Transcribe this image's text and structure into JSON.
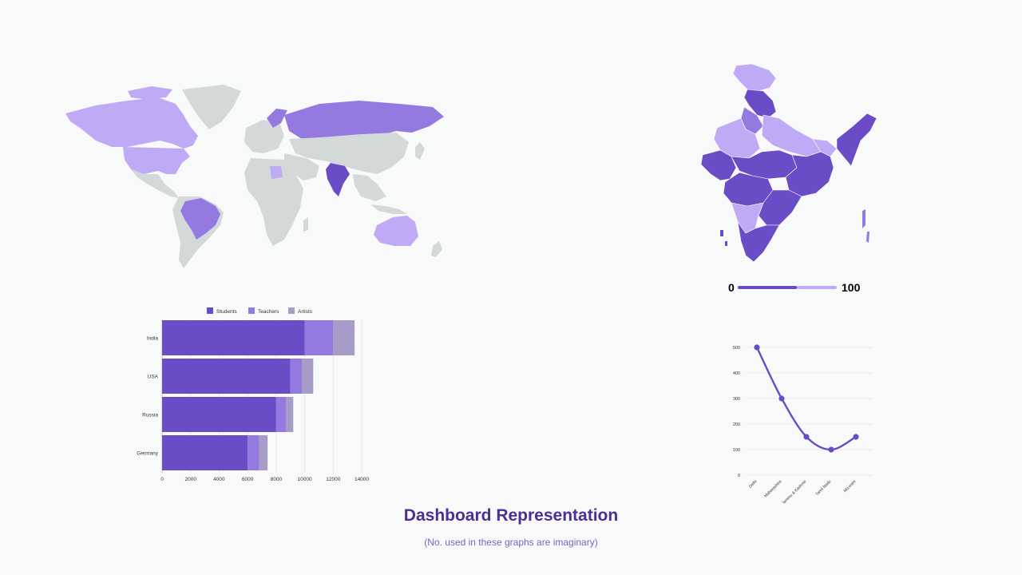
{
  "page": {
    "title": "Dashboard Representation",
    "subtitle": "(No. used in these graphs are imaginary)"
  },
  "colors": {
    "dark": "#6a4cc7",
    "medium": "#9479e0",
    "light": "#bfaaf5",
    "gray": "#a79bc8",
    "land": "#d3d8d8"
  },
  "world_map": {
    "highlights": [
      {
        "region": "Canada",
        "shade": "light"
      },
      {
        "region": "USA",
        "shade": "light"
      },
      {
        "region": "Brazil",
        "shade": "medium"
      },
      {
        "region": "Russia",
        "shade": "medium"
      },
      {
        "region": "India",
        "shade": "dark"
      },
      {
        "region": "Australia",
        "shade": "light"
      },
      {
        "region": "Libya",
        "shade": "light"
      }
    ]
  },
  "india_map": {
    "scale_min": "0",
    "scale_max": "100",
    "scale_split": 0.6
  },
  "chart_data": [
    {
      "type": "bar",
      "orientation": "horizontal",
      "stacked": true,
      "categories": [
        "India",
        "USA",
        "Russia",
        "Germany"
      ],
      "series": [
        {
          "name": "Students",
          "values": [
            10000,
            9000,
            8000,
            6000
          ],
          "color": "#6a4cc7"
        },
        {
          "name": "Teachers",
          "values": [
            2000,
            800,
            700,
            800
          ],
          "color": "#9479e0"
        },
        {
          "name": "Artists",
          "values": [
            1500,
            800,
            500,
            600
          ],
          "color": "#a79bc8"
        }
      ],
      "xlim": [
        0,
        14000
      ],
      "xticks": [
        0,
        2000,
        4000,
        6000,
        8000,
        10000,
        12000,
        14000
      ],
      "legend": "top",
      "grid": true
    },
    {
      "type": "line",
      "categories": [
        "Delhi",
        "Maharashtra",
        "Jammu & Kashmir",
        "Tamil Nadu",
        "Mizoram"
      ],
      "series": [
        {
          "values": [
            500,
            300,
            150,
            100,
            150
          ],
          "color": "#6a4cc7"
        }
      ],
      "ylim": [
        0,
        500
      ],
      "yticks": [
        0,
        100,
        200,
        300,
        400,
        500
      ],
      "grid": true
    }
  ]
}
